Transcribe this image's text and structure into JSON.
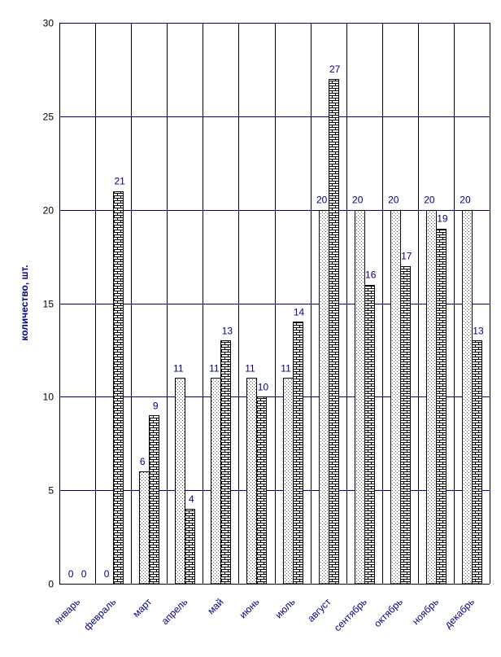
{
  "chart_data": {
    "type": "bar",
    "title": "",
    "xlabel": "",
    "ylabel": "количество, шт.",
    "ylim": [
      0,
      30
    ],
    "yticks": [
      0,
      5,
      10,
      15,
      20,
      25,
      30
    ],
    "categories": [
      "январь",
      "февраль",
      "март",
      "апрель",
      "май",
      "июнь",
      "июль",
      "август",
      "сентябрь",
      "октябрь",
      "ноябрь",
      "декабрь"
    ],
    "series": [
      {
        "values": [
          0,
          0,
          6,
          11,
          11,
          11,
          11,
          20,
          20,
          20,
          20,
          20
        ]
      },
      {
        "values": [
          0,
          21,
          9,
          4,
          13,
          10,
          14,
          27,
          16,
          17,
          19,
          13
        ]
      }
    ],
    "grid": true,
    "legend": "none",
    "colors": {
      "gridline": "#000080",
      "label": "#000080",
      "bar_outline": "#000000"
    }
  }
}
